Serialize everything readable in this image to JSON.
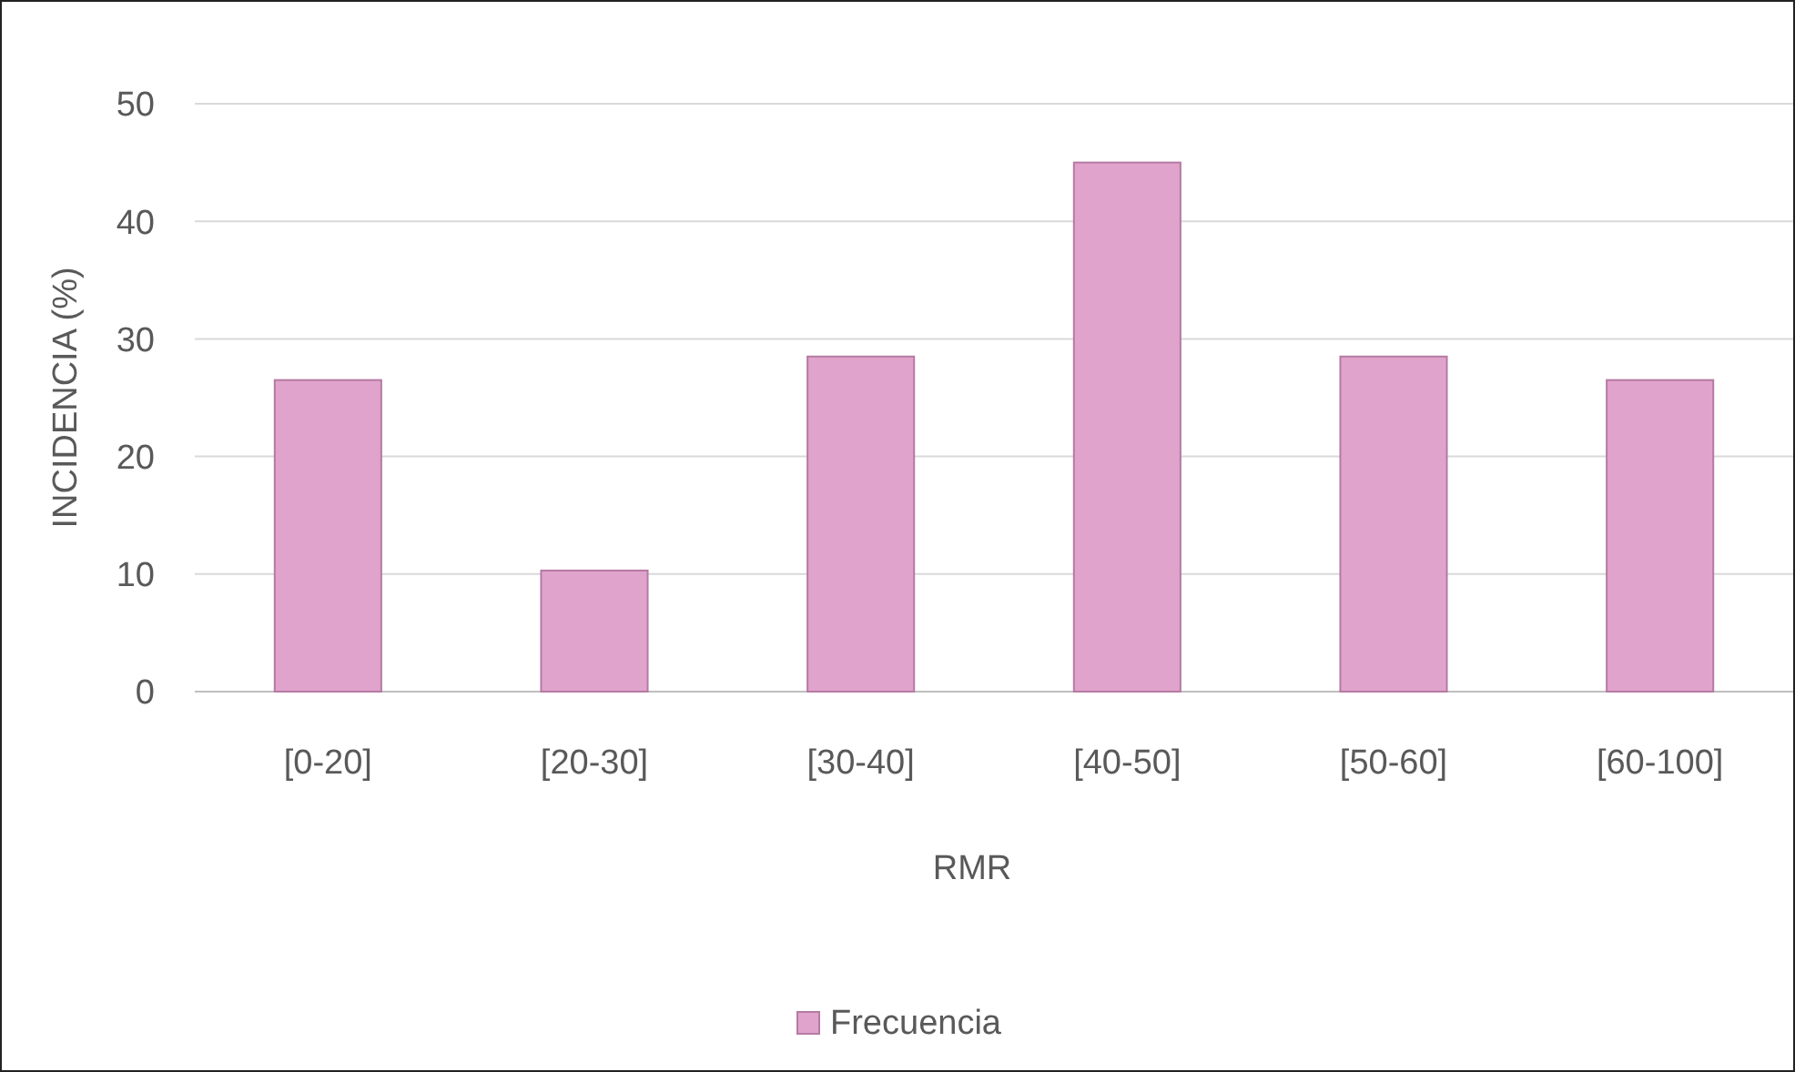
{
  "chart_data": {
    "type": "bar",
    "xlabel": "RMR",
    "ylabel": "INCIDENCIA (%)",
    "categories": [
      "[0-20]",
      "[20-30]",
      "[30-40]",
      "[40-50]",
      "[50-60]",
      "[60-100]"
    ],
    "series": [
      {
        "name": "Frecuencia",
        "color": "#e0a4cc",
        "values": [
          26.5,
          10.3,
          28.5,
          45,
          28.5,
          26.5
        ]
      }
    ],
    "ylim": [
      0,
      50
    ],
    "yticks": [
      0,
      10,
      20,
      30,
      40,
      50
    ],
    "grid": "y",
    "legend": "bottom"
  }
}
